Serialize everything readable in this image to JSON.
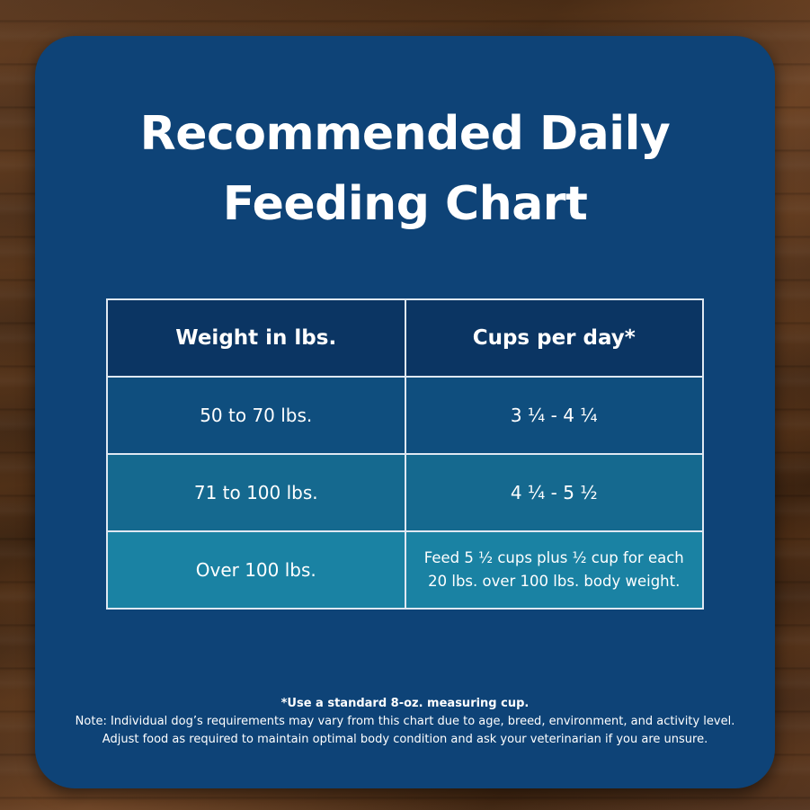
{
  "title": {
    "line1": "Recommended Daily",
    "line2": "Feeding Chart"
  },
  "table": {
    "headers": [
      "Weight in lbs.",
      "Cups per day*"
    ],
    "rows": [
      [
        "50 to 70 lbs.",
        "3 ¼ - 4 ¼"
      ],
      [
        "71 to 100 lbs.",
        "4 ¼ - 5 ½"
      ],
      [
        "Over 100 lbs.",
        "Feed 5 ½ cups plus ½ cup for each 20 lbs. over 100 lbs. body weight."
      ]
    ]
  },
  "footnote": {
    "measure": "*Use a standard 8-oz. measuring cup.",
    "note": "Note: Individual dog’s requirements may vary from this chart due to age, breed, environment, and activity level.",
    "adjust": "Adjust food as required to maintain optimal body condition and ask your veterinarian if you are unsure."
  },
  "colors": {
    "card": "#0e4377",
    "header": "#0b3563",
    "row1": "#0f4e7e",
    "row2": "#15698f",
    "row3": "#1a82a3"
  }
}
